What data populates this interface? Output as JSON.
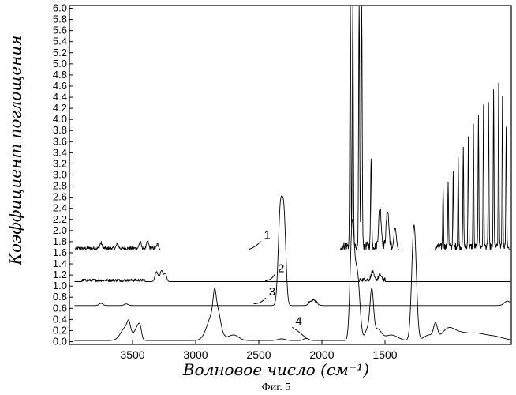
{
  "chart_data": {
    "type": "line",
    "xlabel": "Волновое число (см⁻¹)",
    "ylabel": "Коэффициент поглощения",
    "caption": "Фиг. 5",
    "x_range": [
      4000,
      500
    ],
    "y_range": [
      -0.05,
      6.05
    ],
    "x_ticks": [
      "3500",
      "3000",
      "2500",
      "2000",
      "1500"
    ],
    "y_ticks": [
      "0.0",
      "0.2",
      "0.4",
      "0.6",
      "0.8",
      "1.0",
      "1.2",
      "1.4",
      "1.6",
      "1.8",
      "2.0",
      "2.2",
      "2.4",
      "2.6",
      "2.8",
      "3.0",
      "3.2",
      "3.4",
      "3.6",
      "3.8",
      "4.0",
      "4.2",
      "4.4",
      "4.6",
      "4.8",
      "5.0",
      "5.2",
      "5.4",
      "5.6",
      "5.8",
      "6.0"
    ],
    "series": [
      {
        "name": "1",
        "baseline": 1.65,
        "noise_ranges": [
          [
            3950,
            3300,
            0.06
          ],
          [
            1850,
            1450,
            0.15
          ],
          [
            1100,
            520,
            0.12
          ]
        ],
        "peaks": [
          [
            3750,
            0.1,
            8
          ],
          [
            3620,
            0.08,
            8
          ],
          [
            3440,
            0.12,
            8
          ],
          [
            3380,
            0.13,
            8
          ],
          [
            3300,
            0.08,
            8
          ],
          [
            1775,
            4.4,
            4
          ],
          [
            1755,
            4.4,
            4
          ],
          [
            1705,
            4.4,
            4
          ],
          [
            1685,
            4.4,
            4
          ],
          [
            1610,
            1.6,
            4
          ],
          [
            1540,
            0.7,
            10
          ],
          [
            1480,
            0.65,
            10
          ],
          [
            1420,
            0.4,
            10
          ],
          [
            1040,
            1.1,
            3
          ],
          [
            1000,
            1.2,
            3
          ],
          [
            960,
            1.3,
            3
          ],
          [
            920,
            1.6,
            3
          ],
          [
            880,
            1.8,
            3
          ],
          [
            840,
            2.0,
            3
          ],
          [
            800,
            2.2,
            3
          ],
          [
            760,
            2.4,
            3
          ],
          [
            720,
            2.5,
            3
          ],
          [
            680,
            2.6,
            3
          ],
          [
            640,
            2.8,
            3
          ],
          [
            600,
            2.95,
            3
          ],
          [
            570,
            2.7,
            3
          ],
          [
            540,
            2.2,
            3
          ]
        ]
      },
      {
        "name": "2",
        "baseline": 1.08,
        "noise_ranges": [
          [
            3900,
            3400,
            0.05
          ],
          [
            1700,
            1500,
            0.07
          ]
        ],
        "peaks": [
          [
            3310,
            0.18,
            12
          ],
          [
            3270,
            0.2,
            12
          ],
          [
            3240,
            0.14,
            10
          ],
          [
            1600,
            0.15,
            10
          ],
          [
            1540,
            0.1,
            10
          ]
        ]
      },
      {
        "name": "3",
        "baseline": 0.65,
        "noise_ranges": [
          [
            2110,
            2030,
            0.04
          ]
        ],
        "peaks": [
          [
            3750,
            0.04,
            15
          ],
          [
            3550,
            0.03,
            15
          ],
          [
            2330,
            1.65,
            16
          ],
          [
            2300,
            1.5,
            15
          ],
          [
            2070,
            0.08,
            25
          ],
          [
            530,
            0.08,
            25
          ]
        ]
      },
      {
        "name": "4",
        "baseline": 0.02,
        "noise_ranges": [],
        "peaks": [
          [
            3550,
            0.25,
            40
          ],
          [
            3530,
            0.15,
            12
          ],
          [
            3460,
            0.22,
            20
          ],
          [
            3440,
            0.15,
            12
          ],
          [
            2860,
            0.5,
            45
          ],
          [
            2850,
            0.4,
            12
          ],
          [
            2820,
            0.2,
            18
          ],
          [
            2700,
            0.1,
            40
          ],
          [
            2320,
            0.03,
            30
          ],
          [
            2125,
            0.04,
            20
          ],
          [
            1760,
            2.0,
            16
          ],
          [
            1720,
            1.2,
            20
          ],
          [
            1640,
            0.2,
            18
          ],
          [
            1605,
            0.85,
            14
          ],
          [
            1560,
            0.2,
            30
          ],
          [
            1450,
            0.1,
            50
          ],
          [
            1270,
            2.08,
            18
          ],
          [
            1150,
            0.1,
            40
          ],
          [
            1100,
            0.25,
            15
          ],
          [
            1000,
            0.2,
            50
          ],
          [
            900,
            0.12,
            60
          ],
          [
            780,
            0.1,
            60
          ],
          [
            650,
            0.08,
            80
          ]
        ]
      }
    ],
    "curve_labels": [
      {
        "text": "1",
        "x": 2460,
        "y": 1.85,
        "to_x": 2580,
        "to_y": 1.66
      },
      {
        "text": "2",
        "x": 2350,
        "y": 1.25,
        "to_x": 2450,
        "to_y": 1.09
      },
      {
        "text": "3",
        "x": 2420,
        "y": 0.83,
        "to_x": 2540,
        "to_y": 0.68
      },
      {
        "text": "4",
        "x": 2210,
        "y": 0.3,
        "to_x": 2120,
        "to_y": 0.05
      }
    ]
  }
}
